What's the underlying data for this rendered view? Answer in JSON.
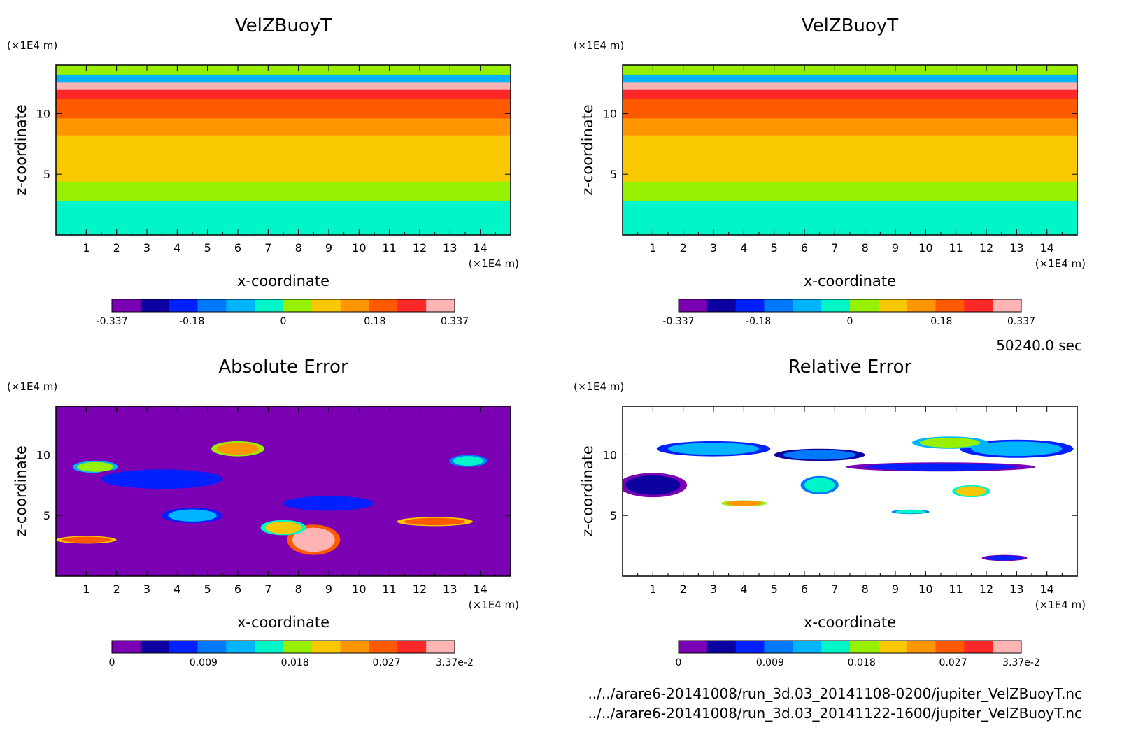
{
  "colors": {
    "levels": [
      "#7b00b4",
      "#0c00a0",
      "#0020ff",
      "#0078ff",
      "#00b4ff",
      "#00f5c8",
      "#96f000",
      "#fac800",
      "#ff9600",
      "#ff5a00",
      "#ff2828",
      "#ffb4b4"
    ]
  },
  "chart_data": [
    {
      "type": "heatmap",
      "title": "VelZBuoyT",
      "xlabel": "x-coordinate",
      "ylabel": "z-coordinate",
      "x_unit": "(×1E4 m)",
      "y_unit": "(×1E4 m)",
      "xlim": [
        0,
        15
      ],
      "ylim": [
        0,
        14
      ],
      "x_ticks": [
        "1",
        "2",
        "3",
        "4",
        "5",
        "6",
        "7",
        "8",
        "9",
        "10",
        "11",
        "12",
        "13",
        "14"
      ],
      "y_ticks": [
        "5",
        "10"
      ],
      "colorbar": {
        "min": -0.337,
        "max": 0.337,
        "labels": [
          "-0.337",
          "-0.18",
          "0",
          "0.18",
          "0.337"
        ]
      },
      "bands": [
        {
          "z_top": 14.0,
          "level": 6
        },
        {
          "z_top": 13.2,
          "level": 4
        },
        {
          "z_top": 12.6,
          "level": 11
        },
        {
          "z_top": 12.0,
          "level": 10
        },
        {
          "z_top": 11.2,
          "level": 9
        },
        {
          "z_top": 9.6,
          "level": 8
        },
        {
          "z_top": 8.2,
          "level": 7
        },
        {
          "z_top": 4.4,
          "level": 6
        },
        {
          "z_top": 2.8,
          "level": 5
        }
      ]
    },
    {
      "type": "heatmap",
      "title": "VelZBuoyT",
      "xlabel": "x-coordinate",
      "ylabel": "z-coordinate",
      "x_unit": "(×1E4 m)",
      "y_unit": "(×1E4 m)",
      "xlim": [
        0,
        15
      ],
      "ylim": [
        0,
        14
      ],
      "x_ticks": [
        "1",
        "2",
        "3",
        "4",
        "5",
        "6",
        "7",
        "8",
        "9",
        "10",
        "11",
        "12",
        "13",
        "14"
      ],
      "y_ticks": [
        "5",
        "10"
      ],
      "colorbar": {
        "min": -0.337,
        "max": 0.337,
        "labels": [
          "-0.337",
          "-0.18",
          "0",
          "0.18",
          "0.337"
        ]
      },
      "bands": [
        {
          "z_top": 14.0,
          "level": 6
        },
        {
          "z_top": 13.2,
          "level": 4
        },
        {
          "z_top": 12.6,
          "level": 11
        },
        {
          "z_top": 12.0,
          "level": 10
        },
        {
          "z_top": 11.2,
          "level": 9
        },
        {
          "z_top": 9.6,
          "level": 8
        },
        {
          "z_top": 8.2,
          "level": 7
        },
        {
          "z_top": 4.4,
          "level": 6
        },
        {
          "z_top": 2.8,
          "level": 5
        }
      ]
    },
    {
      "type": "heatmap",
      "title": "Absolute Error",
      "xlabel": "x-coordinate",
      "ylabel": "z-coordinate",
      "x_unit": "(×1E4 m)",
      "y_unit": "(×1E4 m)",
      "xlim": [
        0,
        15
      ],
      "ylim": [
        0,
        14
      ],
      "x_ticks": [
        "1",
        "2",
        "3",
        "4",
        "5",
        "6",
        "7",
        "8",
        "9",
        "10",
        "11",
        "12",
        "13",
        "14"
      ],
      "y_ticks": [
        "5",
        "10"
      ],
      "colorbar": {
        "min": 0,
        "max": 0.0337,
        "labels": [
          "0",
          "0.009",
          "0.018",
          "0.027",
          "3.37e-2"
        ]
      },
      "background_level": 0,
      "blobs": [
        {
          "x": 8.5,
          "z": 3.0,
          "rx": 0.7,
          "rz": 1.0,
          "level": 11
        },
        {
          "x": 12.5,
          "z": 4.5,
          "rx": 1.0,
          "rz": 0.3,
          "level": 9
        },
        {
          "x": 1.0,
          "z": 3.0,
          "rx": 0.8,
          "rz": 0.25,
          "level": 9
        },
        {
          "x": 6.0,
          "z": 10.5,
          "rx": 0.7,
          "rz": 0.5,
          "level": 8
        },
        {
          "x": 1.3,
          "z": 9.0,
          "rx": 0.6,
          "rz": 0.4,
          "level": 6
        },
        {
          "x": 7.5,
          "z": 4.0,
          "rx": 0.6,
          "rz": 0.5,
          "level": 7
        },
        {
          "x": 13.6,
          "z": 9.5,
          "rx": 0.5,
          "rz": 0.4,
          "level": 5
        },
        {
          "x": 4.5,
          "z": 5.0,
          "rx": 0.8,
          "rz": 0.5,
          "level": 4
        },
        {
          "x": 9.0,
          "z": 6.0,
          "rx": 1.5,
          "rz": 0.6,
          "level": 2
        },
        {
          "x": 3.5,
          "z": 8.0,
          "rx": 2.0,
          "rz": 0.8,
          "level": 2
        }
      ]
    },
    {
      "type": "heatmap",
      "title": "Relative Error",
      "xlabel": "x-coordinate",
      "ylabel": "z-coordinate",
      "x_unit": "(×1E4 m)",
      "y_unit": "(×1E4 m)",
      "xlim": [
        0,
        15
      ],
      "ylim": [
        0,
        14
      ],
      "x_ticks": [
        "1",
        "2",
        "3",
        "4",
        "5",
        "6",
        "7",
        "8",
        "9",
        "10",
        "11",
        "12",
        "13",
        "14"
      ],
      "y_ticks": [
        "5",
        "10"
      ],
      "colorbar": {
        "min": 0,
        "max": 0.0337,
        "labels": [
          "0",
          "0.009",
          "0.018",
          "0.027",
          "3.37e-2"
        ]
      },
      "background_level": -1,
      "blobs": [
        {
          "x": 1.0,
          "z": 7.5,
          "rx": 0.9,
          "rz": 0.8,
          "level": 1
        },
        {
          "x": 3.0,
          "z": 10.5,
          "rx": 1.5,
          "rz": 0.5,
          "level": 4
        },
        {
          "x": 6.5,
          "z": 10.0,
          "rx": 1.2,
          "rz": 0.4,
          "level": 3
        },
        {
          "x": 10.5,
          "z": 9.0,
          "rx": 2.5,
          "rz": 0.3,
          "level": 2
        },
        {
          "x": 13.0,
          "z": 10.5,
          "rx": 1.5,
          "rz": 0.6,
          "level": 4
        },
        {
          "x": 10.8,
          "z": 11.0,
          "rx": 1.0,
          "rz": 0.4,
          "level": 6
        },
        {
          "x": 6.5,
          "z": 7.5,
          "rx": 0.5,
          "rz": 0.6,
          "level": 5
        },
        {
          "x": 11.5,
          "z": 7.0,
          "rx": 0.5,
          "rz": 0.4,
          "level": 7
        },
        {
          "x": 12.6,
          "z": 1.5,
          "rx": 0.6,
          "rz": 0.2,
          "level": 2
        },
        {
          "x": 9.5,
          "z": 5.3,
          "rx": 0.5,
          "rz": 0.15,
          "level": 5
        },
        {
          "x": 4.0,
          "z": 6.0,
          "rx": 0.6,
          "rz": 0.2,
          "level": 8
        }
      ]
    }
  ],
  "time_label": "50240.0 sec",
  "files": [
    "../../arare6-20141008/run_3d.03_20141108-0200/jupiter_VelZBuoyT.nc",
    "../../arare6-20141008/run_3d.03_20141122-1600/jupiter_VelZBuoyT.nc"
  ]
}
